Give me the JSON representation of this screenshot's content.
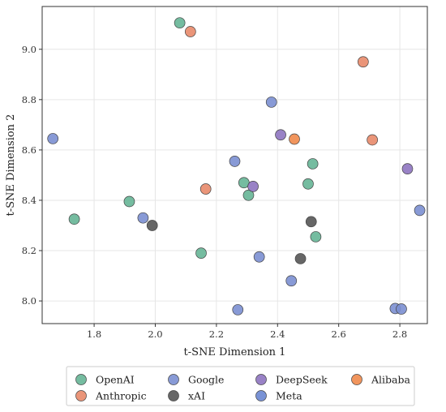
{
  "chart_data": {
    "type": "scatter",
    "xlabel": "t-SNE Dimension 1",
    "ylabel": "t-SNE Dimension 2",
    "xlim": [
      1.63,
      2.89
    ],
    "ylim": [
      7.91,
      9.17
    ],
    "xticks": [
      1.8,
      2.0,
      2.2,
      2.4,
      2.6,
      2.8
    ],
    "yticks": [
      8.0,
      8.2,
      8.4,
      8.6,
      8.8,
      9.0
    ],
    "xtick_labels": [
      "1.8",
      "2.0",
      "2.2",
      "2.4",
      "2.6",
      "2.8"
    ],
    "ytick_labels": [
      "8.0",
      "8.2",
      "8.4",
      "8.6",
      "8.8",
      "9.0"
    ],
    "grid": true,
    "legend_position": "bottom",
    "series": [
      {
        "name": "OpenAI",
        "color": "#66b596",
        "points": [
          [
            2.08,
            9.105
          ],
          [
            2.29,
            8.47
          ],
          [
            2.305,
            8.42
          ],
          [
            2.515,
            8.545
          ],
          [
            2.5,
            8.465
          ],
          [
            2.525,
            8.255
          ],
          [
            1.915,
            8.395
          ],
          [
            1.735,
            8.325
          ],
          [
            2.15,
            8.19
          ]
        ]
      },
      {
        "name": "Anthropic",
        "color": "#e8896a",
        "points": [
          [
            2.115,
            9.07
          ],
          [
            2.68,
            8.95
          ],
          [
            2.71,
            8.64
          ],
          [
            2.165,
            8.445
          ]
        ]
      },
      {
        "name": "Google",
        "color": "#7b8fd1",
        "points": [
          [
            1.665,
            8.645
          ],
          [
            2.38,
            8.79
          ],
          [
            2.26,
            8.555
          ],
          [
            1.96,
            8.33
          ],
          [
            2.34,
            8.175
          ],
          [
            2.445,
            8.08
          ],
          [
            2.865,
            8.36
          ],
          [
            2.27,
            7.965
          ],
          [
            2.785,
            7.97
          ],
          [
            2.805,
            7.968
          ]
        ]
      },
      {
        "name": "xAI",
        "color": "#555555",
        "points": [
          [
            1.99,
            8.3
          ],
          [
            2.51,
            8.315
          ],
          [
            2.475,
            8.168
          ]
        ]
      },
      {
        "name": "DeepSeek",
        "color": "#8e74c0",
        "points": [
          [
            2.41,
            8.66
          ],
          [
            2.32,
            8.455
          ],
          [
            2.825,
            8.525
          ]
        ]
      },
      {
        "name": "Meta",
        "color": "#6a86d0",
        "points": []
      },
      {
        "name": "Alibaba",
        "color": "#f08a4b",
        "points": [
          [
            2.455,
            8.643
          ]
        ]
      }
    ],
    "legend": {
      "rows": [
        [
          "OpenAI",
          "Google",
          "DeepSeek",
          "Alibaba"
        ],
        [
          "Anthropic",
          "xAI",
          "Meta"
        ]
      ]
    }
  }
}
